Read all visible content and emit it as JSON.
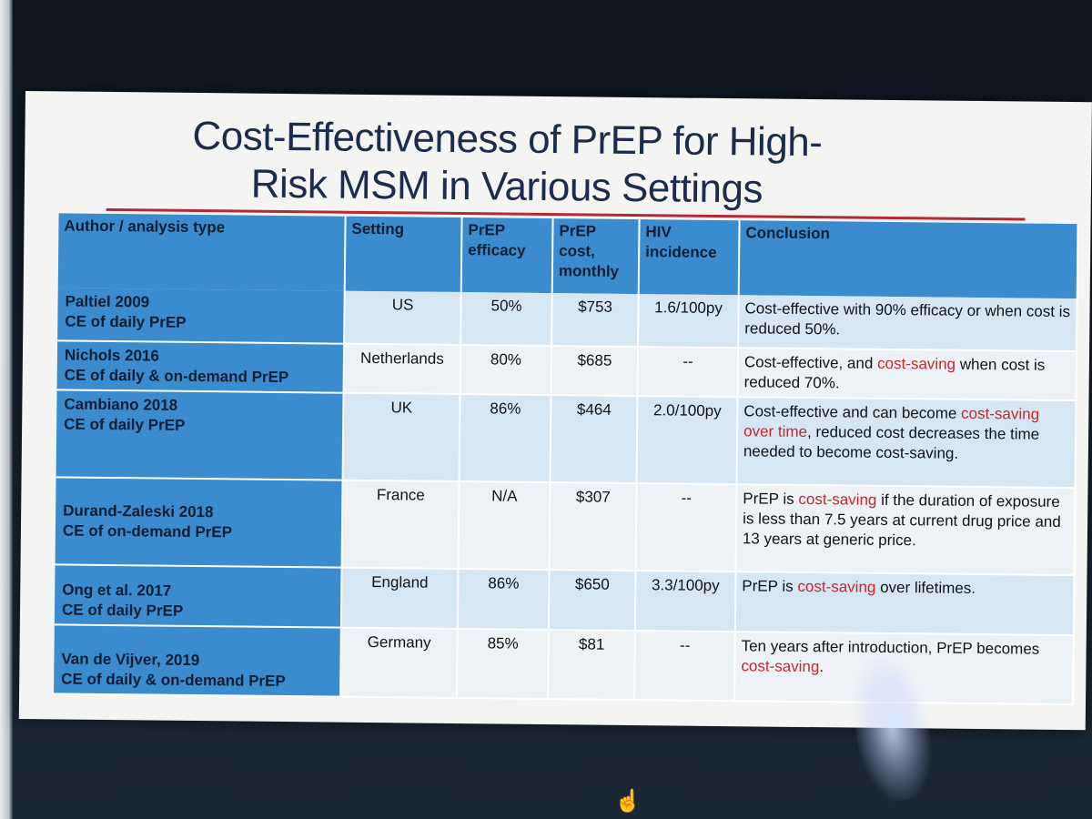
{
  "slide": {
    "title_line1": "Cost-Effectiveness of PrEP for High-",
    "title_line2": "Risk MSM in Various Settings"
  },
  "table": {
    "headers": {
      "author": "Author / analysis type",
      "setting": "Setting",
      "efficacy": "PrEP efficacy",
      "cost": "PrEP cost, monthly",
      "incidence": "HIV incidence",
      "conclusion": "Conclusion"
    },
    "rows": [
      {
        "author": "Paltiel 2009",
        "analysis": "CE of daily PrEP",
        "setting": "US",
        "efficacy": "50%",
        "cost": "$753",
        "incidence": "1.6/100py",
        "conclusion_a": "Cost-effective with 90% efficacy or when cost is reduced 50%.",
        "conclusion_red": "",
        "conclusion_b": ""
      },
      {
        "author": "Nichols 2016",
        "analysis": "CE of daily & on-demand PrEP",
        "setting": "Netherlands",
        "efficacy": "80%",
        "cost": "$685",
        "incidence": "--",
        "conclusion_a": "Cost-effective, and ",
        "conclusion_red": "cost-saving",
        "conclusion_b": " when cost is reduced 70%."
      },
      {
        "author": "Cambiano 2018",
        "analysis": "CE of daily PrEP",
        "setting": "UK",
        "efficacy": "86%",
        "cost": "$464",
        "incidence": "2.0/100py",
        "conclusion_a": "Cost-effective and can become ",
        "conclusion_red": "cost-saving over time",
        "conclusion_b": ", reduced cost decreases the time needed to become cost-saving."
      },
      {
        "author": "Durand-Zaleski 2018",
        "analysis": "CE of on-demand PrEP",
        "setting": "France",
        "efficacy": "N/A",
        "cost": "$307",
        "incidence": "--",
        "conclusion_a": "PrEP is ",
        "conclusion_red": "cost-saving",
        "conclusion_b": " if the duration of exposure is less than 7.5 years at current drug price and 13 years at generic price."
      },
      {
        "author": "Ong et al. 2017",
        "analysis": "CE of daily PrEP",
        "setting": "England",
        "efficacy": "86%",
        "cost": "$650",
        "incidence": "3.3/100py",
        "conclusion_a": "PrEP is ",
        "conclusion_red": "cost-saving",
        "conclusion_b": " over lifetimes."
      },
      {
        "author": "Van de Vijver, 2019",
        "analysis": "CE of daily & on-demand PrEP",
        "setting": "Germany",
        "efficacy": "85%",
        "cost": "$81",
        "incidence": "--",
        "conclusion_a": "Ten years after introduction, PrEP becomes ",
        "conclusion_red": "cost-saving",
        "conclusion_b": "."
      }
    ]
  },
  "colors": {
    "header_blue": "#3a8ccf",
    "title_navy": "#1c2c4c",
    "accent_red": "#c8262e"
  },
  "cursor": {
    "icon": "hand-pointer-icon"
  }
}
